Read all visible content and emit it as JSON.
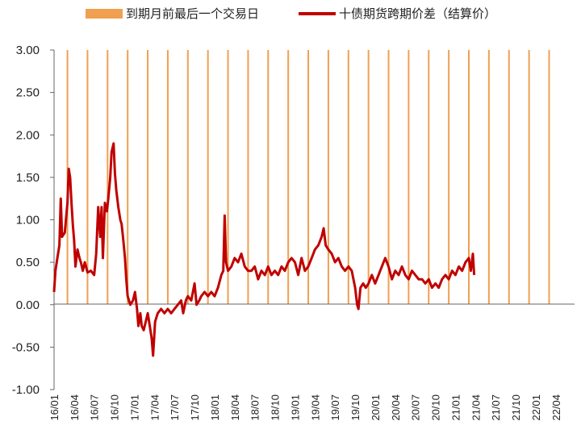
{
  "chart_data": {
    "type": "line",
    "title": "",
    "xlabel": "",
    "ylabel": "",
    "ylim": [
      -1.0,
      3.0
    ],
    "y_ticks": [
      "3.00",
      "2.50",
      "2.00",
      "1.50",
      "1.00",
      "0.50",
      "0.00",
      "-0.50",
      "-1.00"
    ],
    "x_ticks": [
      "16/01",
      "16/04",
      "16/07",
      "16/10",
      "17/01",
      "17/04",
      "17/07",
      "17/10",
      "18/01",
      "18/04",
      "18/07",
      "18/10",
      "19/01",
      "19/04",
      "19/07",
      "19/10",
      "20/01",
      "20/04",
      "20/07",
      "20/10",
      "21/01",
      "21/04",
      "21/07",
      "21/10",
      "22/01",
      "22/04"
    ],
    "grid": false,
    "legend_position": "top",
    "legend": {
      "bar_label": "到期月前最后一个交易日",
      "line_label": "十债期货跨期价差（结算价）"
    },
    "colors": {
      "bar": "#F0A050",
      "line": "#C00000",
      "axis": "#666666"
    },
    "expiry_bars": {
      "value": 3.0,
      "count": 26
    },
    "series": [
      {
        "name": "十债期货跨期价差（结算价）",
        "x_unit": "months since 16/01",
        "points": [
          [
            0.0,
            0.15
          ],
          [
            0.2,
            0.4
          ],
          [
            0.5,
            0.55
          ],
          [
            0.8,
            0.7
          ],
          [
            1.0,
            1.25
          ],
          [
            1.2,
            0.8
          ],
          [
            1.6,
            0.85
          ],
          [
            2.0,
            1.2
          ],
          [
            2.2,
            1.6
          ],
          [
            2.4,
            1.5
          ],
          [
            2.6,
            1.2
          ],
          [
            2.8,
            0.95
          ],
          [
            3.0,
            0.75
          ],
          [
            3.2,
            0.45
          ],
          [
            3.5,
            0.65
          ],
          [
            3.8,
            0.55
          ],
          [
            4.0,
            0.5
          ],
          [
            4.3,
            0.4
          ],
          [
            4.6,
            0.5
          ],
          [
            5.0,
            0.38
          ],
          [
            5.5,
            0.4
          ],
          [
            6.0,
            0.35
          ],
          [
            6.3,
            0.6
          ],
          [
            6.6,
            1.15
          ],
          [
            6.9,
            0.8
          ],
          [
            7.1,
            1.15
          ],
          [
            7.3,
            0.55
          ],
          [
            7.6,
            1.2
          ],
          [
            7.9,
            1.1
          ],
          [
            8.1,
            1.25
          ],
          [
            8.4,
            1.5
          ],
          [
            8.6,
            1.8
          ],
          [
            8.9,
            1.9
          ],
          [
            9.1,
            1.55
          ],
          [
            9.3,
            1.35
          ],
          [
            9.6,
            1.15
          ],
          [
            9.9,
            1.0
          ],
          [
            10.1,
            0.95
          ],
          [
            10.3,
            0.8
          ],
          [
            10.6,
            0.55
          ],
          [
            10.8,
            0.3
          ],
          [
            11.0,
            0.1
          ],
          [
            11.4,
            0.0
          ],
          [
            11.8,
            0.05
          ],
          [
            12.1,
            0.15
          ],
          [
            12.4,
            -0.05
          ],
          [
            12.6,
            -0.25
          ],
          [
            12.9,
            -0.1
          ],
          [
            13.1,
            -0.25
          ],
          [
            13.4,
            -0.3
          ],
          [
            13.7,
            -0.2
          ],
          [
            14.0,
            -0.1
          ],
          [
            14.3,
            -0.25
          ],
          [
            14.6,
            -0.4
          ],
          [
            14.8,
            -0.6
          ],
          [
            15.1,
            -0.2
          ],
          [
            15.5,
            -0.1
          ],
          [
            16.0,
            -0.05
          ],
          [
            16.5,
            -0.1
          ],
          [
            17.0,
            -0.05
          ],
          [
            17.5,
            -0.1
          ],
          [
            18.0,
            -0.05
          ],
          [
            18.5,
            0.0
          ],
          [
            19.0,
            0.05
          ],
          [
            19.3,
            -0.1
          ],
          [
            19.7,
            0.05
          ],
          [
            20.0,
            0.1
          ],
          [
            20.5,
            0.05
          ],
          [
            21.0,
            0.25
          ],
          [
            21.3,
            0.0
          ],
          [
            21.7,
            0.05
          ],
          [
            22.0,
            0.1
          ],
          [
            22.5,
            0.15
          ],
          [
            23.0,
            0.1
          ],
          [
            23.5,
            0.15
          ],
          [
            24.0,
            0.1
          ],
          [
            24.5,
            0.2
          ],
          [
            25.0,
            0.35
          ],
          [
            25.3,
            0.4
          ],
          [
            25.5,
            1.05
          ],
          [
            25.7,
            0.5
          ],
          [
            26.0,
            0.4
          ],
          [
            26.5,
            0.45
          ],
          [
            27.0,
            0.55
          ],
          [
            27.5,
            0.5
          ],
          [
            28.0,
            0.6
          ],
          [
            28.5,
            0.45
          ],
          [
            29.0,
            0.4
          ],
          [
            29.5,
            0.4
          ],
          [
            30.0,
            0.45
          ],
          [
            30.5,
            0.3
          ],
          [
            31.0,
            0.4
          ],
          [
            31.5,
            0.35
          ],
          [
            32.0,
            0.45
          ],
          [
            32.5,
            0.35
          ],
          [
            33.0,
            0.4
          ],
          [
            33.5,
            0.35
          ],
          [
            34.0,
            0.45
          ],
          [
            34.5,
            0.4
          ],
          [
            35.0,
            0.5
          ],
          [
            35.5,
            0.55
          ],
          [
            36.0,
            0.5
          ],
          [
            36.5,
            0.35
          ],
          [
            37.0,
            0.55
          ],
          [
            37.5,
            0.4
          ],
          [
            38.0,
            0.45
          ],
          [
            38.5,
            0.55
          ],
          [
            39.0,
            0.65
          ],
          [
            39.5,
            0.7
          ],
          [
            40.0,
            0.8
          ],
          [
            40.3,
            0.9
          ],
          [
            40.6,
            0.7
          ],
          [
            41.0,
            0.65
          ],
          [
            41.5,
            0.6
          ],
          [
            42.0,
            0.5
          ],
          [
            42.5,
            0.55
          ],
          [
            43.0,
            0.45
          ],
          [
            43.5,
            0.4
          ],
          [
            44.0,
            0.45
          ],
          [
            44.5,
            0.4
          ],
          [
            45.0,
            0.2
          ],
          [
            45.3,
            0.0
          ],
          [
            45.5,
            -0.05
          ],
          [
            45.8,
            0.2
          ],
          [
            46.2,
            0.25
          ],
          [
            46.6,
            0.2
          ],
          [
            47.0,
            0.25
          ],
          [
            47.5,
            0.35
          ],
          [
            48.0,
            0.25
          ],
          [
            48.5,
            0.35
          ],
          [
            49.0,
            0.45
          ],
          [
            49.5,
            0.55
          ],
          [
            50.0,
            0.45
          ],
          [
            50.5,
            0.3
          ],
          [
            51.0,
            0.4
          ],
          [
            51.5,
            0.35
          ],
          [
            52.0,
            0.45
          ],
          [
            52.5,
            0.35
          ],
          [
            53.0,
            0.3
          ],
          [
            53.5,
            0.4
          ],
          [
            54.0,
            0.35
          ],
          [
            54.5,
            0.3
          ],
          [
            55.0,
            0.3
          ],
          [
            55.5,
            0.25
          ],
          [
            56.0,
            0.3
          ],
          [
            56.5,
            0.2
          ],
          [
            57.0,
            0.25
          ],
          [
            57.5,
            0.2
          ],
          [
            58.0,
            0.3
          ],
          [
            58.5,
            0.35
          ],
          [
            59.0,
            0.3
          ],
          [
            59.5,
            0.4
          ],
          [
            60.0,
            0.35
          ],
          [
            60.5,
            0.45
          ],
          [
            61.0,
            0.4
          ],
          [
            61.5,
            0.5
          ],
          [
            62.0,
            0.55
          ],
          [
            62.3,
            0.4
          ],
          [
            62.6,
            0.6
          ],
          [
            62.8,
            0.35
          ]
        ]
      }
    ]
  }
}
